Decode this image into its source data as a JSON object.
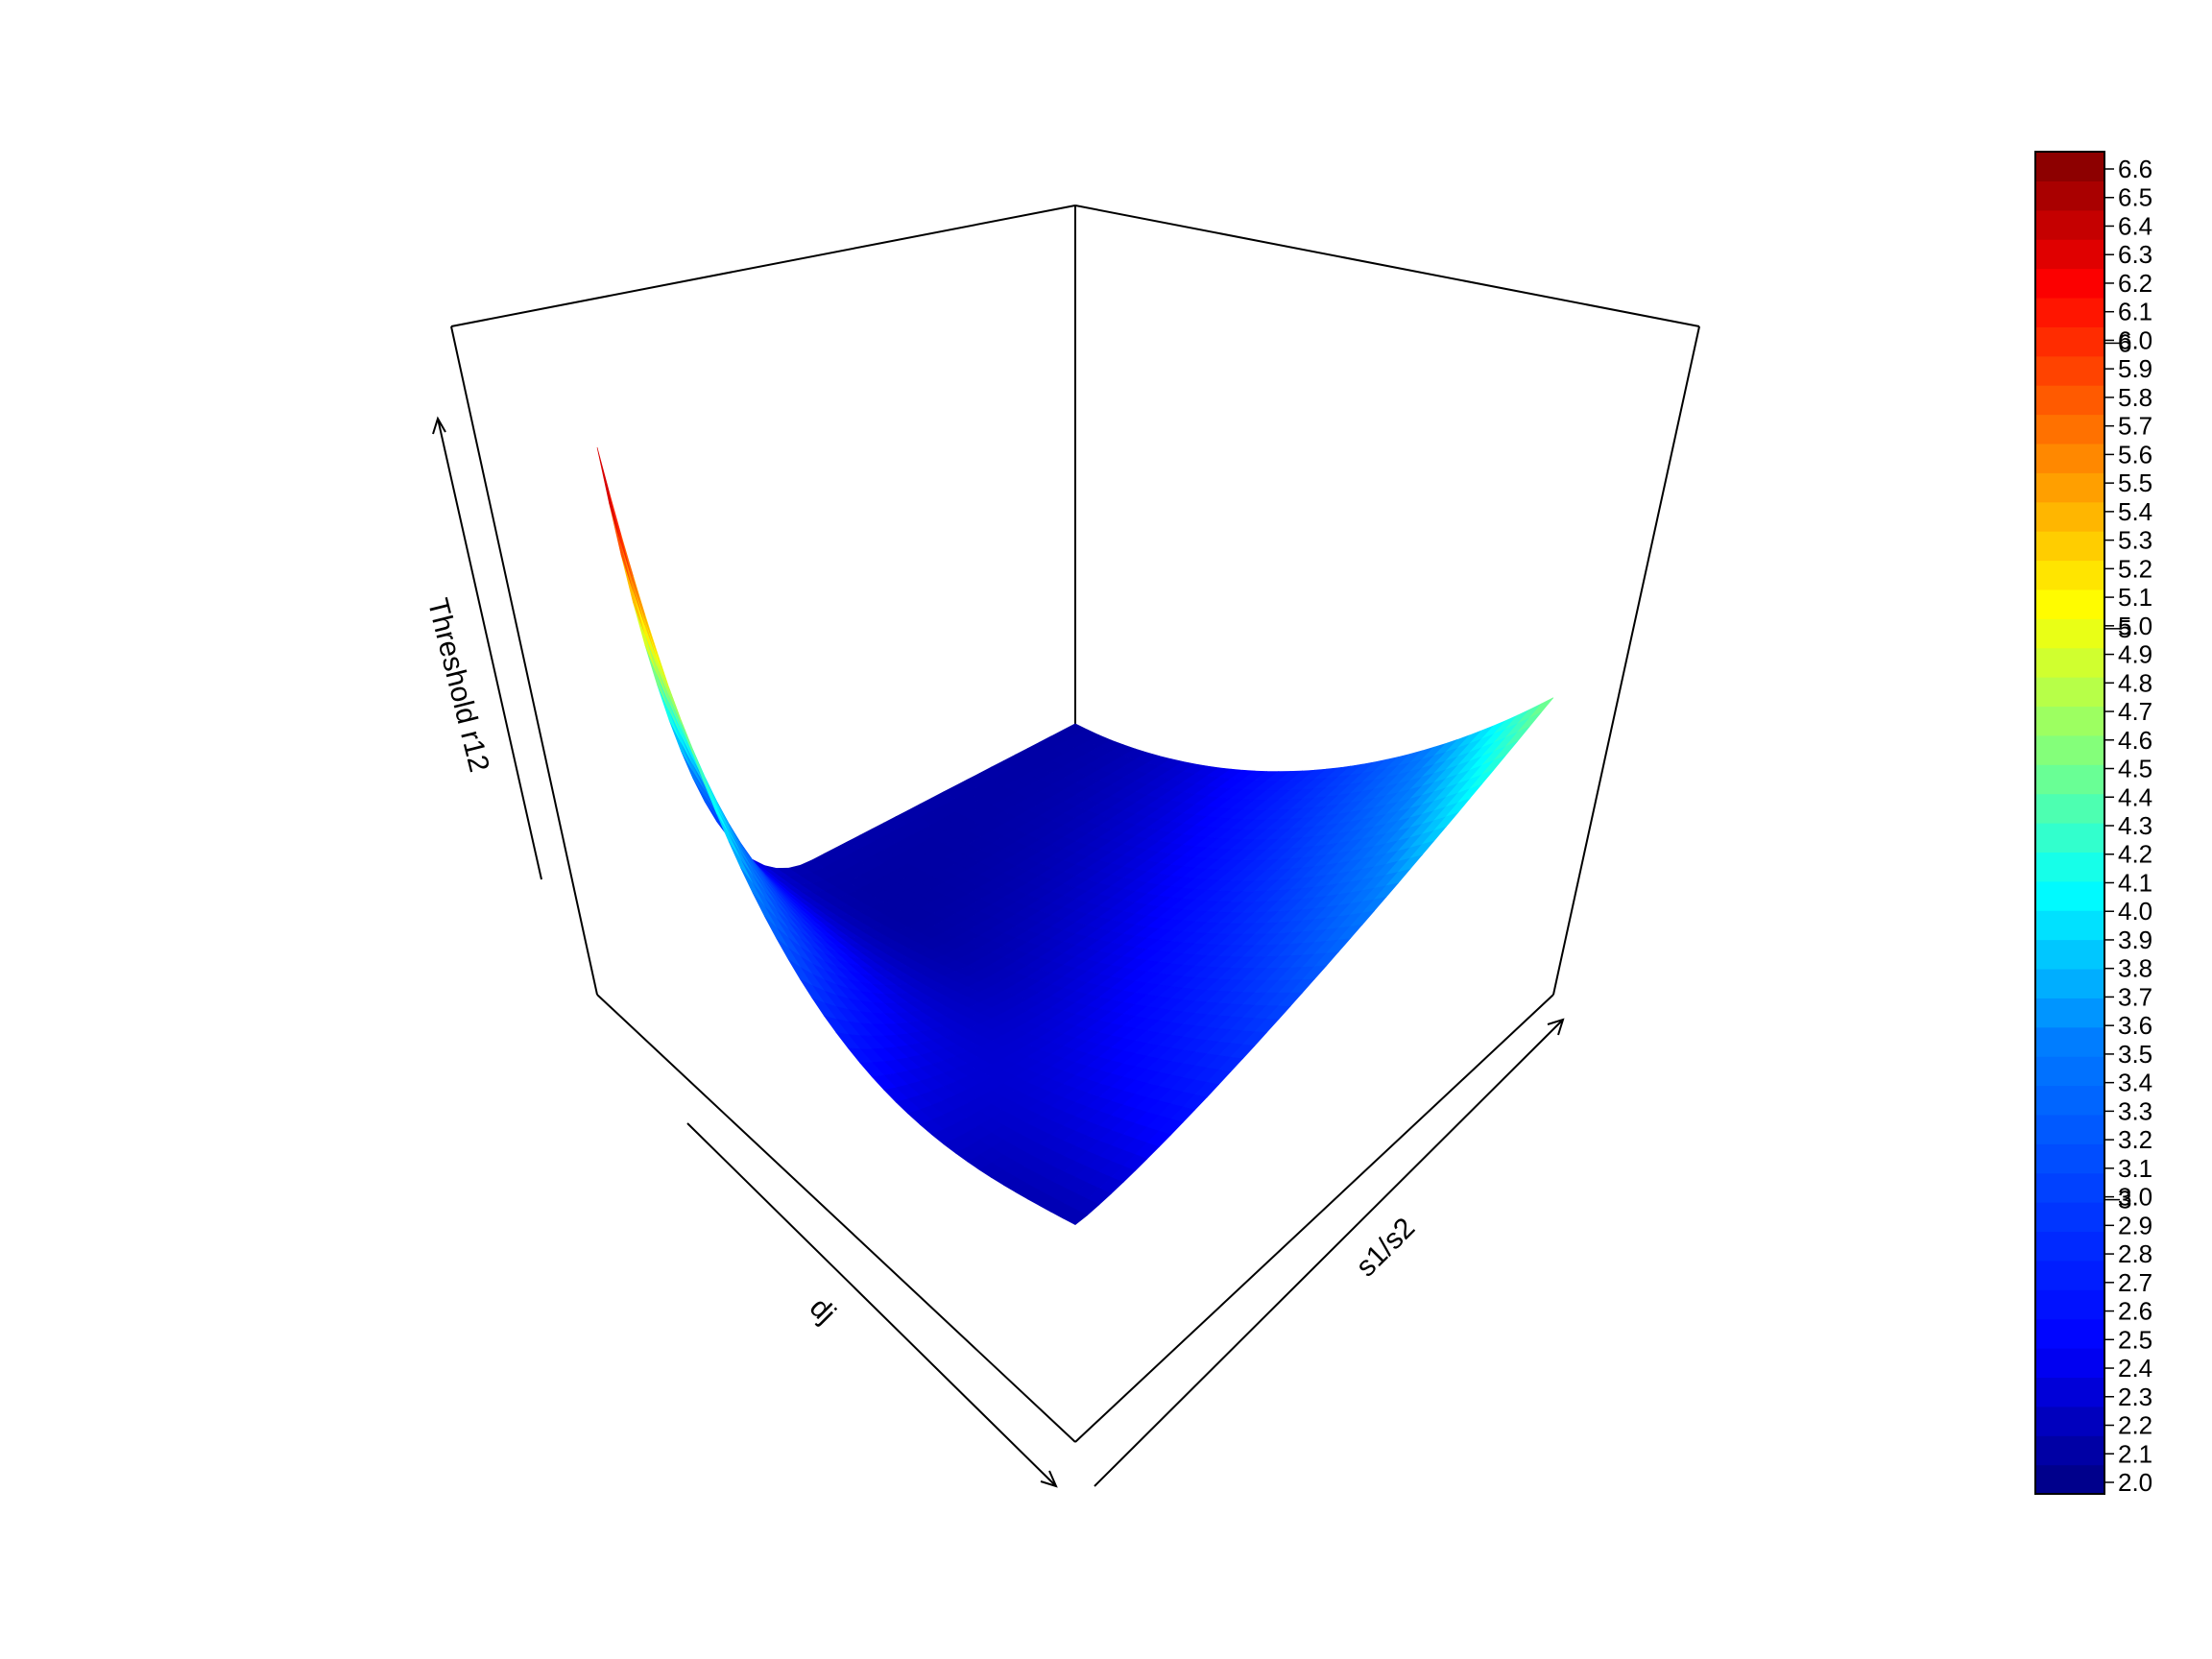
{
  "chart_data": {
    "type": "surface3d",
    "xlabel": "dj",
    "ylabel": "s1/s2",
    "zlabel": "Threshold r12",
    "colorbar": {
      "min": 2.0,
      "max": 6.6,
      "palette": "jet",
      "tick_labels": [
        "2.0",
        "2.1",
        "2.2",
        "2.3",
        "2.4",
        "2.5",
        "2.6",
        "2.7",
        "2.8",
        "2.9",
        "3.0",
        "3.1",
        "3.2",
        "3.3",
        "3.4",
        "3.5",
        "3.6",
        "3.7",
        "3.8",
        "3.9",
        "4.0",
        "4.1",
        "4.2",
        "4.3",
        "4.4",
        "4.5",
        "4.6",
        "4.7",
        "4.8",
        "4.9",
        "5.0",
        "5.1",
        "5.2",
        "5.3",
        "5.4",
        "5.5",
        "5.6",
        "5.7",
        "5.8",
        "5.9",
        "6.0",
        "6.1",
        "6.2",
        "6.3",
        "6.4",
        "6.5",
        "6.6"
      ],
      "tick_values": [
        2.0,
        2.1,
        2.2,
        2.3,
        2.4,
        2.5,
        2.6,
        2.7,
        2.8,
        2.9,
        3.0,
        3.1,
        3.2,
        3.3,
        3.4,
        3.5,
        3.6,
        3.7,
        3.8,
        3.9,
        4.0,
        4.1,
        4.2,
        4.3,
        4.4,
        4.5,
        4.6,
        4.7,
        4.8,
        4.9,
        5.0,
        5.1,
        5.2,
        5.3,
        5.4,
        5.5,
        5.6,
        5.7,
        5.8,
        5.9,
        6.0,
        6.1,
        6.2,
        6.3,
        6.4,
        6.5,
        6.6
      ],
      "extra_tick_labels": [
        "3",
        "5",
        "6"
      ],
      "extra_tick_values": [
        3.0,
        5.0,
        6.0
      ]
    },
    "surface_z_range": [
      2.0,
      6.6
    ],
    "corner_values": {
      "low_dj_low_ratio": 2.1,
      "high_dj_low_ratio": 6.6,
      "low_dj_high_ratio": 4.6,
      "high_dj_high_ratio": 2.2
    }
  }
}
